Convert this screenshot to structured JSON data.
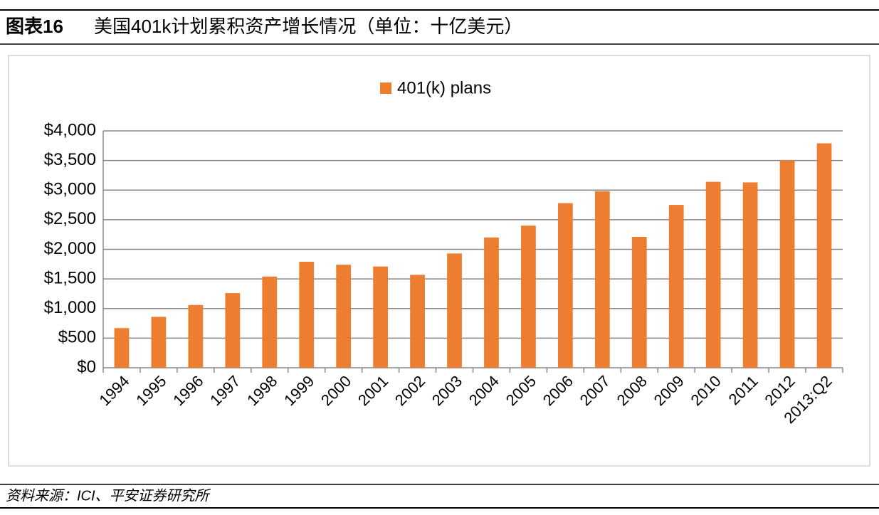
{
  "header": {
    "label": "图表16",
    "title": "美国401k计划累积资产增长情况（单位：十亿美元）"
  },
  "footer": {
    "source": "资料来源：ICI、平安证券研究所"
  },
  "chart_data": {
    "type": "bar",
    "categories": [
      "1994",
      "1995",
      "1996",
      "1997",
      "1998",
      "1999",
      "2000",
      "2001",
      "2002",
      "2003",
      "2004",
      "2005",
      "2006",
      "2007",
      "2008",
      "2009",
      "2010",
      "2011",
      "2012",
      "2013:Q2"
    ],
    "series": [
      {
        "name": "401(k) plans",
        "color": "#ed7d31",
        "values": [
          670,
          860,
          1060,
          1260,
          1540,
          1790,
          1740,
          1710,
          1570,
          1930,
          2200,
          2400,
          2780,
          2980,
          2210,
          2750,
          3140,
          3130,
          3500,
          3790
        ]
      }
    ],
    "ylim": [
      0,
      4000
    ],
    "yticks": [
      {
        "value": 0,
        "label": "$0"
      },
      {
        "value": 500,
        "label": "$500"
      },
      {
        "value": 1000,
        "label": "$1,000"
      },
      {
        "value": 1500,
        "label": "$1,500"
      },
      {
        "value": 2000,
        "label": "$2,000"
      },
      {
        "value": 2500,
        "label": "$2,500"
      },
      {
        "value": 3000,
        "label": "$3,000"
      },
      {
        "value": 3500,
        "label": "$3,500"
      },
      {
        "value": 4000,
        "label": "$4,000"
      }
    ],
    "grid": true,
    "legend": "top"
  }
}
